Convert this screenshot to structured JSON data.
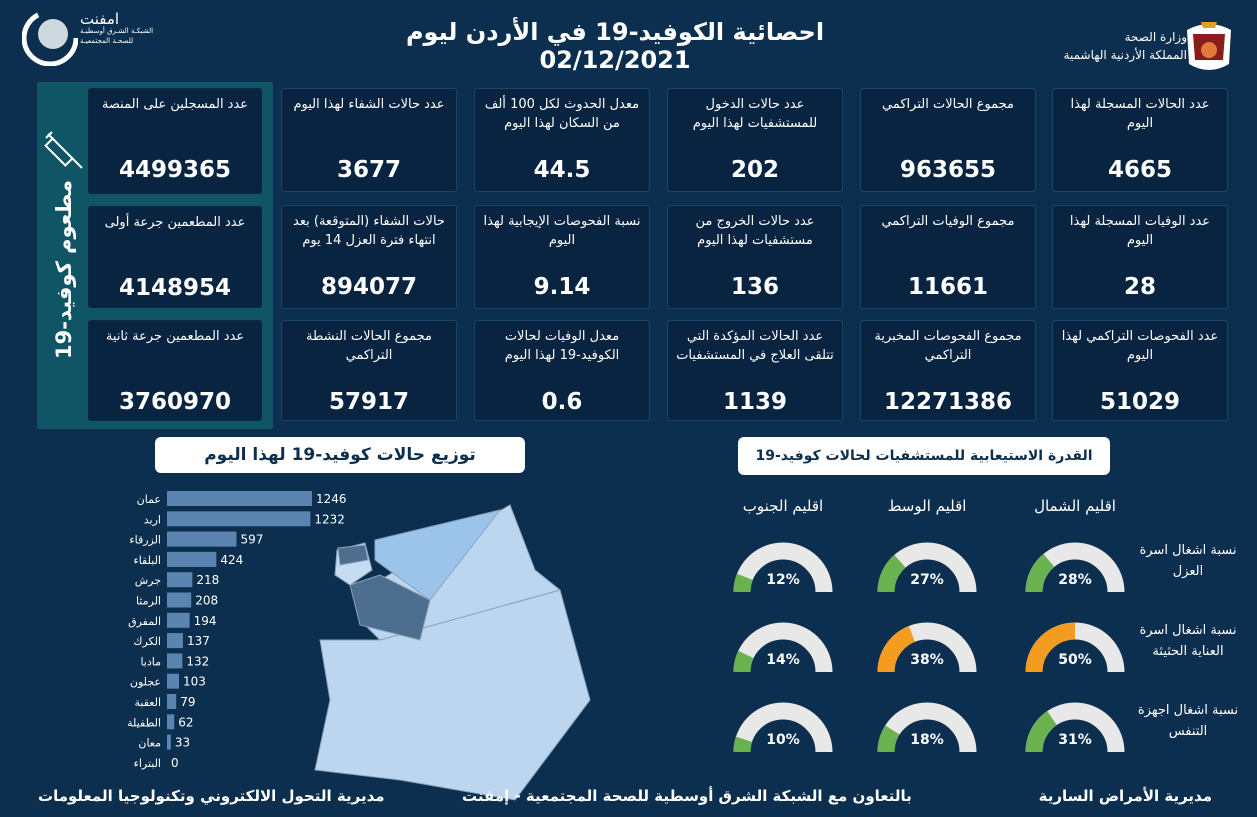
{
  "header": {
    "title": "احصائية الكوفيد-19 في الأردن ليوم",
    "date": "02/12/2021",
    "ministry_line1": "وزارة الصحة",
    "ministry_line2": "المملكة الأردنية الهاشمية",
    "partner_name": "امفنت",
    "partner_line1": "الشبكـة الشـرق أوسطيـة",
    "partner_line2": "للصحـة المجتمعيـة"
  },
  "stats": [
    {
      "label": "عدد الحالات المسجلة لهذا اليوم",
      "value": "4665"
    },
    {
      "label": "مجموع الحالات التراكمي",
      "value": "963655"
    },
    {
      "label": "عدد حالات الدخول للمستشفيات لهذا اليوم",
      "value": "202"
    },
    {
      "label": "معدل الحدوث لكل 100 ألف من السكان لهذا اليوم",
      "value": "44.5"
    },
    {
      "label": "عدد حالات الشفاء لهذا اليوم",
      "value": "3677"
    },
    {
      "label": "عدد الوفيات المسجلة لهذا اليوم",
      "value": "28"
    },
    {
      "label": "مجموع الوفيات التراكمي",
      "value": "11661"
    },
    {
      "label": "عدد حالات الخروج من مستشفيات لهذا اليوم",
      "value": "136"
    },
    {
      "label": "نسبة الفحوصات الإيجابية لهذا اليوم",
      "value": "9.14"
    },
    {
      "label": "حالات الشفاء (المتوقعة) بعد انتهاء فترة العزل 14 يوم",
      "value": "894077"
    },
    {
      "label": "عدد الفحوصات التراكمي لهذا اليوم",
      "value": "51029"
    },
    {
      "label": "مجموع الفحوصات المخبرية التراكمي",
      "value": "12271386"
    },
    {
      "label": "عدد الحالات المؤكدة التي تتلقى العلاج في المستشفيات",
      "value": "1139"
    },
    {
      "label": "معدل الوفيات لحالات الكوفيد-19 لهذا اليوم",
      "value": "0.6"
    },
    {
      "label": "مجموع الحالات النشطة التراكمي",
      "value": "57917"
    }
  ],
  "vaccine": {
    "title": "مطعوم كوفيد-19",
    "cards": [
      {
        "label": "عدد المسجلين على المنصة",
        "value": "4499365"
      },
      {
        "label": "عدد المطعمين جرعة أولى",
        "value": "4148954"
      },
      {
        "label": "عدد المطعمين جرعة ثانية",
        "value": "3760970"
      }
    ]
  },
  "chart_data": [
    {
      "type": "bar",
      "title": "توزيع حالات كوفيد-19 لهذا اليوم",
      "categories": [
        "عمان",
        "اربد",
        "الزرقاء",
        "البلقاء",
        "جرش",
        "الرمثا",
        "المفرق",
        "الكرك",
        "مادبا",
        "عجلون",
        "العقبة",
        "الطفيلة",
        "معان",
        "البتراء"
      ],
      "values": [
        1246,
        1232,
        597,
        424,
        218,
        208,
        194,
        137,
        132,
        103,
        79,
        62,
        33,
        0
      ],
      "bar_color": "#5b85b0"
    },
    {
      "type": "gauge",
      "title": "القدرة الاستيعابية للمستشفيات لحالات كوفيد-19",
      "regions": [
        "اقليم الشمال",
        "اقليم الوسط",
        "اقليم الجنوب"
      ],
      "metrics": [
        "نسبة اشغال اسرة العزل",
        "نسبة اشغال اسرة العناية الحثيثة",
        "نسبة اشغال اجهزة التنفس"
      ],
      "values": [
        [
          28,
          27,
          12
        ],
        [
          50,
          38,
          14
        ],
        [
          31,
          18,
          10
        ]
      ],
      "colors": {
        "low": "#6ab150",
        "high": "#f39c1f",
        "track": "#e8e8e8"
      }
    }
  ],
  "footer": {
    "right": "مديرية الأمراض السارية",
    "center": "بالتعاون مع الشبكة الشرق أوسطية للصحة المجتمعية - إمفنت",
    "left": "مديرية التحول الالكتروني وتكنولوجيا المعلومات"
  }
}
